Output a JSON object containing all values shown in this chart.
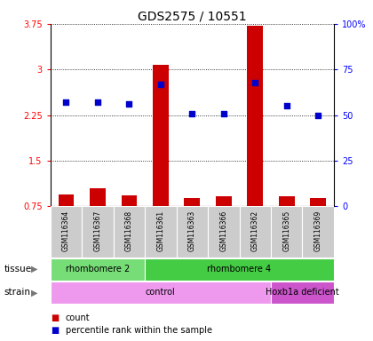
{
  "title": "GDS2575 / 10551",
  "samples": [
    "GSM116364",
    "GSM116367",
    "GSM116368",
    "GSM116361",
    "GSM116363",
    "GSM116366",
    "GSM116362",
    "GSM116365",
    "GSM116369"
  ],
  "counts": [
    0.95,
    1.05,
    0.93,
    3.08,
    0.88,
    0.92,
    3.72,
    0.92,
    0.88
  ],
  "percentiles": [
    57,
    57,
    56,
    67,
    51,
    51,
    68,
    55,
    50
  ],
  "ylim_left": [
    0.75,
    3.75
  ],
  "yticks_left": [
    0.75,
    1.5,
    2.25,
    3.0,
    3.75
  ],
  "ytick_labels_left": [
    "0.75",
    "1.5",
    "2.25",
    "3",
    "3.75"
  ],
  "ylim_right": [
    0,
    100
  ],
  "yticks_right": [
    0,
    25,
    50,
    75,
    100
  ],
  "ytick_labels_right": [
    "0",
    "25",
    "50",
    "75",
    "100%"
  ],
  "bar_color": "#cc0000",
  "dot_color": "#0000cc",
  "tissue_groups": [
    {
      "label": "rhombomere 2",
      "start": 0,
      "end": 3,
      "color": "#77dd77"
    },
    {
      "label": "rhombomere 4",
      "start": 3,
      "end": 9,
      "color": "#44cc44"
    }
  ],
  "strain_groups": [
    {
      "label": "control",
      "start": 0,
      "end": 7,
      "color": "#ee99ee"
    },
    {
      "label": "Hoxb1a deficient",
      "start": 7,
      "end": 9,
      "color": "#cc55cc"
    }
  ],
  "legend_count_label": "count",
  "legend_percentile_label": "percentile rank within the sample"
}
